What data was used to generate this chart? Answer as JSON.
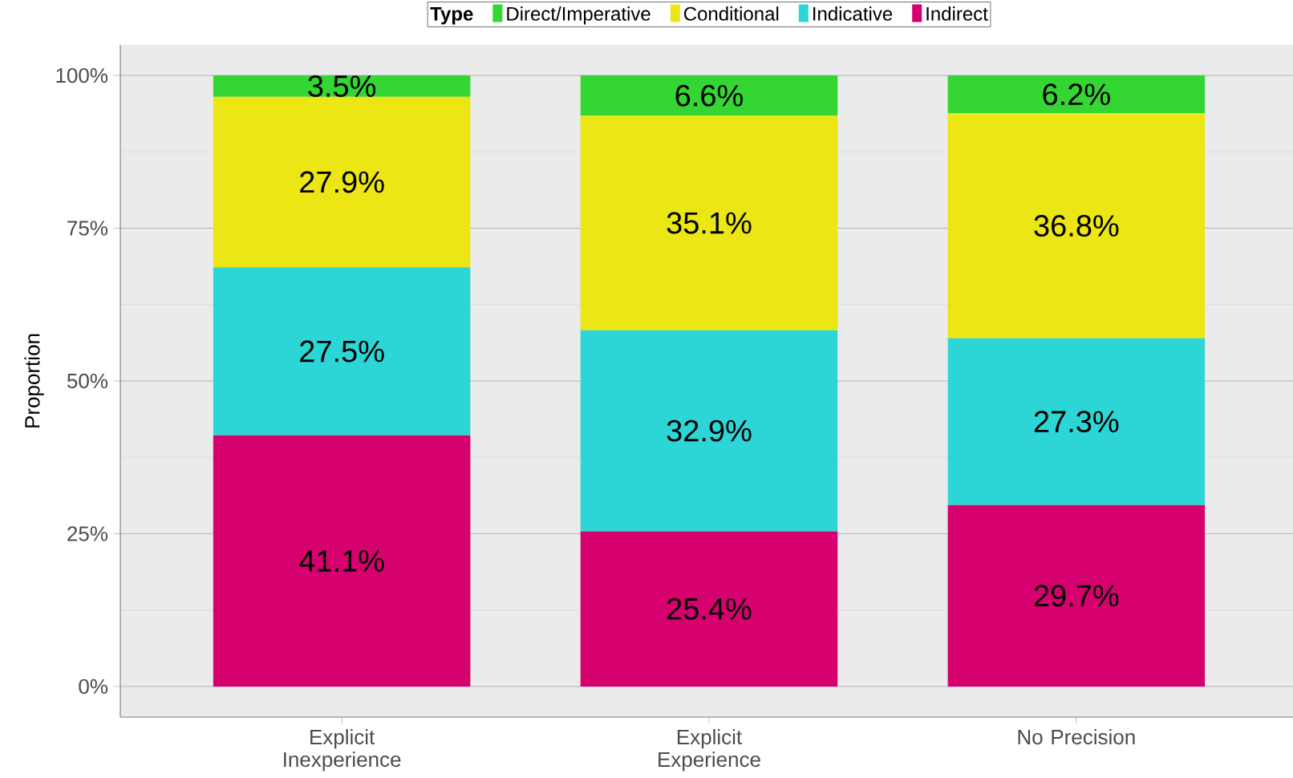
{
  "chart_data": {
    "type": "bar",
    "stacked": true,
    "ylabel": "Proportion",
    "legend_title": "Type",
    "legend": "top",
    "categories": [
      "Explicit Inexperience",
      "Explicit Experience",
      "No Precision"
    ],
    "series": [
      {
        "name": "Indirect",
        "color": "#d6006e",
        "values": [
          0.411,
          0.254,
          0.297
        ],
        "value_labels": [
          "41.1%",
          "25.4%",
          "29.7%"
        ]
      },
      {
        "name": "Indicative",
        "color": "#2dd6d6",
        "values": [
          0.275,
          0.329,
          0.273
        ],
        "value_labels": [
          "27.5%",
          "32.9%",
          "27.3%"
        ]
      },
      {
        "name": "Conditional",
        "color": "#ebe614",
        "values": [
          0.279,
          0.351,
          0.368
        ],
        "value_labels": [
          "27.9%",
          "35.1%",
          "36.8%"
        ]
      },
      {
        "name": "Direct/Imperative",
        "color": "#33d633",
        "values": [
          0.035,
          0.066,
          0.062
        ],
        "value_labels": [
          "3.5%",
          "6.6%",
          "6.2%"
        ]
      }
    ],
    "ylim": [
      -0.05,
      1.05
    ],
    "yticks": [
      {
        "value": 0,
        "label": "0%"
      },
      {
        "value": 0.25,
        "label": "25%"
      },
      {
        "value": 0.5,
        "label": "50%"
      },
      {
        "value": 0.75,
        "label": "75%"
      },
      {
        "value": 1,
        "label": "100%"
      }
    ],
    "grid": "y"
  }
}
